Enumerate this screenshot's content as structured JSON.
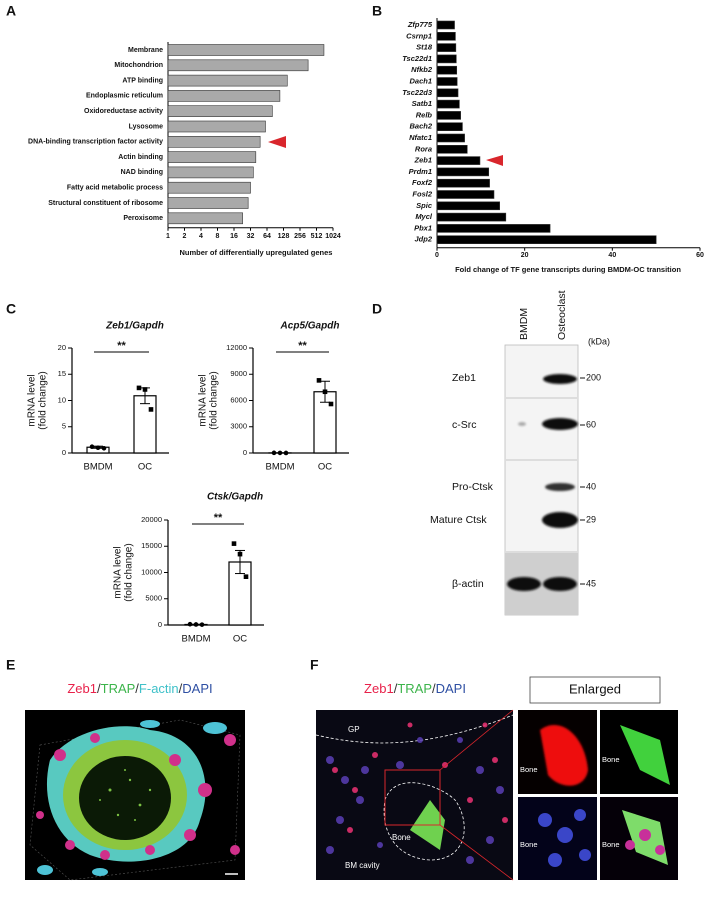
{
  "panel_labels": [
    "A",
    "B",
    "C",
    "D",
    "E",
    "F"
  ],
  "chart_data": [
    {
      "type": "hbar",
      "xlabel": "Number of differentially upregulated genes",
      "categories": [
        "Membrane",
        "Mitochondrion",
        "ATP binding",
        "Endoplasmic reticulum",
        "Oxidoreductase activity",
        "Lysosome",
        "DNA-binding transcription factor activity",
        "Actin binding",
        "NAD binding",
        "Fatty acid metabolic process",
        "Structural constituent of ribosome",
        "Peroxisome"
      ],
      "values": [
        700,
        360,
        150,
        110,
        80,
        60,
        48,
        40,
        36,
        32,
        29,
        23
      ],
      "color": "#a9a9a9",
      "log_scale": true,
      "xlim": [
        1,
        1024
      ],
      "xticks": [
        1,
        2,
        4,
        8,
        16,
        32,
        64,
        128,
        256,
        512,
        1024
      ]
    },
    {
      "type": "hbar",
      "xlabel": "Fold change of TF gene transcripts during BMDM-OC transition",
      "categories": [
        "Zfp775",
        "Csrnp1",
        "St18",
        "Tsc22d1",
        "Nfkb2",
        "Dach1",
        "Tsc22d3",
        "Satb1",
        "Relb",
        "Bach2",
        "Nfatc1",
        "Rora",
        "Zeb1",
        "Prdm1",
        "Foxf2",
        "Fosl2",
        "Spic",
        "Mycl",
        "Pbx1",
        "Jdp2"
      ],
      "values": [
        4.0,
        4.2,
        4.3,
        4.4,
        4.5,
        4.6,
        4.8,
        5.1,
        5.4,
        5.8,
        6.3,
        6.9,
        9.8,
        11.8,
        12.0,
        13.0,
        14.3,
        15.7,
        25.8,
        50.0
      ],
      "color": "#000000",
      "log_scale": false,
      "xlim": [
        0,
        60
      ],
      "xticks": [
        0,
        20,
        40,
        60
      ]
    },
    {
      "type": "bar",
      "title": "Zeb1/Gapdh",
      "ylabel": [
        "mRNA level",
        "(fold change)"
      ],
      "categories": [
        "BMDM",
        "OC"
      ],
      "values": [
        1.1,
        10.9
      ],
      "errors": [
        0.2,
        1.5
      ],
      "points": [
        [
          1.2,
          1.0,
          0.9
        ],
        [
          12.4,
          12.1,
          8.3
        ]
      ],
      "significance": "**",
      "ylim": [
        0,
        20
      ],
      "yticks": [
        0,
        5,
        10,
        15,
        20
      ]
    },
    {
      "type": "bar",
      "title": "Acp5/Gapdh",
      "ylabel": [
        "mRNA level",
        "(fold change)"
      ],
      "categories": [
        "BMDM",
        "OC"
      ],
      "values": [
        10,
        7000
      ],
      "errors": [
        5,
        1200
      ],
      "points": [
        [
          20,
          10,
          5
        ],
        [
          8300,
          7000,
          5600
        ]
      ],
      "significance": "**",
      "ylim": [
        0,
        12000
      ],
      "yticks": [
        0,
        3000,
        6000,
        9000,
        12000
      ]
    },
    {
      "type": "bar",
      "title": "Ctsk/Gapdh",
      "ylabel": [
        "mRNA level",
        "(fold change)"
      ],
      "categories": [
        "BMDM",
        "OC"
      ],
      "values": [
        100,
        12000
      ],
      "errors": [
        40,
        2200
      ],
      "points": [
        [
          150,
          100,
          60
        ],
        [
          15500,
          13500,
          9200
        ]
      ],
      "significance": "**",
      "ylim": [
        0,
        20000
      ],
      "yticks": [
        0,
        5000,
        10000,
        15000,
        20000
      ]
    }
  ],
  "blot": {
    "columns": [
      "BMDM",
      "Osteoclast"
    ],
    "unit": "(kDa)",
    "rows": [
      {
        "label": "Zeb1",
        "marker": 200
      },
      {
        "label": "c-Src",
        "marker": 60
      },
      {
        "label": "Pro-Ctsk",
        "marker": 40
      },
      {
        "label": "Mature Ctsk",
        "marker": 29
      },
      {
        "label": "β-actin",
        "marker": 45
      }
    ]
  },
  "images": {
    "E": {
      "title_parts": [
        {
          "text": "Zeb1",
          "color": "#e8214a"
        },
        {
          "text": "/",
          "color": "#333333"
        },
        {
          "text": "TRAP",
          "color": "#3cb44b"
        },
        {
          "text": "/",
          "color": "#333333"
        },
        {
          "text": "F-actin",
          "color": "#3fc1c9"
        },
        {
          "text": "/",
          "color": "#333333"
        },
        {
          "text": "DAPI",
          "color": "#2e4fa3"
        }
      ]
    },
    "F": {
      "title_parts": [
        {
          "text": "Zeb1",
          "color": "#e8214a"
        },
        {
          "text": "/",
          "color": "#333333"
        },
        {
          "text": "TRAP",
          "color": "#3cb44b"
        },
        {
          "text": "/",
          "color": "#333333"
        },
        {
          "text": "DAPI",
          "color": "#2e4fa3"
        }
      ],
      "enlarged_title": "Enlarged",
      "labels": [
        "GP",
        "Bone",
        "BM cavity"
      ],
      "enlarged_labels": [
        "Bone",
        "Bone",
        "Bone",
        "Bone"
      ]
    }
  }
}
